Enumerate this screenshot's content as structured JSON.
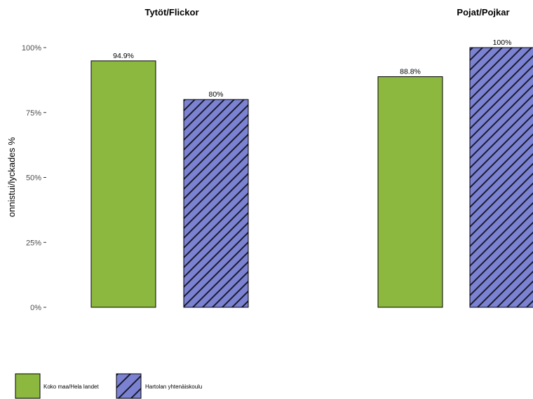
{
  "chart_data": {
    "type": "bar",
    "ylabel": "onnistui/lyckades %",
    "ylim": [
      0,
      100
    ],
    "yticks": [
      {
        "value": 0,
        "label": "0%"
      },
      {
        "value": 25,
        "label": "25%"
      },
      {
        "value": 50,
        "label": "50%"
      },
      {
        "value": 75,
        "label": "75%"
      },
      {
        "value": 100,
        "label": "100%"
      }
    ],
    "grid": false,
    "legend_position": "bottom-left",
    "panels": [
      {
        "title": "Tytöt/Flickor",
        "bars": [
          {
            "series": "Koko maa/Hela landet",
            "value": 94.9,
            "label": "94.9%"
          },
          {
            "series": "Hartolan yhtenäiskoulu",
            "value": 80,
            "label": "80%"
          }
        ]
      },
      {
        "title": "Pojat/Pojkar",
        "bars": [
          {
            "series": "Koko maa/Hela landet",
            "value": 88.8,
            "label": "88.8%"
          },
          {
            "series": "Hartolan yhtenäiskoulu",
            "value": 100,
            "label": "100%"
          }
        ]
      }
    ],
    "series": [
      {
        "name": "Koko maa/Hela landet",
        "color": "#8db83f",
        "pattern": "none"
      },
      {
        "name": "Hartolan yhtenäiskoulu",
        "color": "#7b82d1",
        "pattern": "diagonal-stripes"
      }
    ]
  }
}
